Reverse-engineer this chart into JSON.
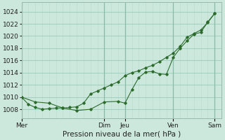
{
  "xlabel": "Pression niveau de la mer( hPa )",
  "bg_color": "#cce8dc",
  "grid_color_major": "#99ccbb",
  "grid_color_minor": "#bbddd0",
  "line_color": "#2d6b2d",
  "ylim": [
    1006.5,
    1025.5
  ],
  "yticks": [
    1008,
    1010,
    1012,
    1014,
    1016,
    1018,
    1020,
    1022,
    1024
  ],
  "day_labels": [
    "Mer",
    "Dim",
    "Jeu",
    "Ven",
    "Sam"
  ],
  "day_positions": [
    0,
    3.0,
    3.75,
    5.5,
    7.0
  ],
  "xlim": [
    0,
    7.25
  ],
  "line1_x": [
    0,
    0.25,
    0.5,
    0.75,
    1.0,
    1.25,
    1.5,
    1.75,
    2.0,
    2.25,
    2.5,
    2.75,
    3.0,
    3.25,
    3.5,
    3.75,
    4.0,
    4.25,
    4.5,
    4.75,
    5.0,
    5.25,
    5.5,
    5.75,
    6.0,
    6.25,
    6.5,
    6.75,
    7.0
  ],
  "line1_y": [
    1010,
    1008.8,
    1008.3,
    1008.0,
    1008.1,
    1008.2,
    1008.2,
    1008.3,
    1008.4,
    1009.0,
    1010.5,
    1011.0,
    1011.5,
    1012.0,
    1012.5,
    1013.5,
    1014.0,
    1014.3,
    1014.8,
    1015.2,
    1015.8,
    1016.5,
    1017.2,
    1018.3,
    1019.8,
    1020.4,
    1021.0,
    1022.2,
    1023.7
  ],
  "line2_x": [
    0,
    0.5,
    1.0,
    1.5,
    2.0,
    2.5,
    3.0,
    3.5,
    3.75,
    4.0,
    4.25,
    4.5,
    4.75,
    5.0,
    5.25,
    5.5,
    5.75,
    6.0,
    6.25,
    6.5,
    6.75,
    7.0
  ],
  "line2_y": [
    1010,
    1009.2,
    1009.0,
    1008.2,
    1007.8,
    1008.0,
    1009.2,
    1009.3,
    1009.0,
    1011.2,
    1013.2,
    1014.1,
    1014.2,
    1013.8,
    1013.7,
    1016.5,
    1018.0,
    1019.2,
    1020.3,
    1020.6,
    1022.3,
    1023.7
  ],
  "tick_fontsize": 6.5,
  "label_fontsize": 7.5
}
